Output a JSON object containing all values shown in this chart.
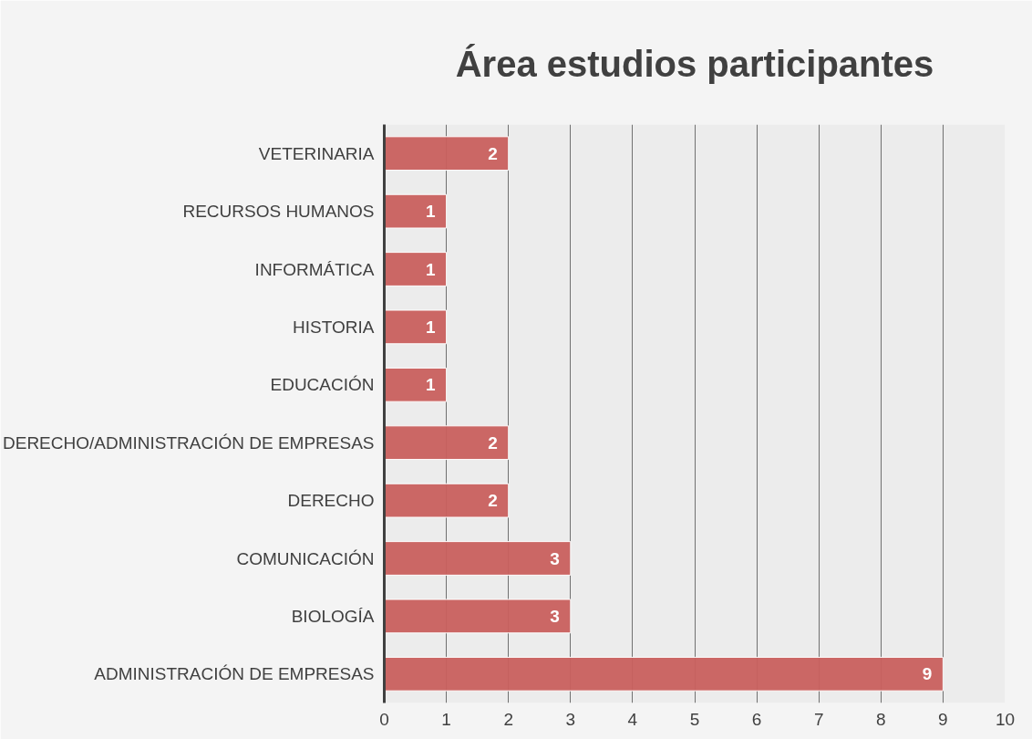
{
  "chart_data": {
    "type": "bar",
    "orientation": "horizontal",
    "title": "Área estudios participantes",
    "categories": [
      "VETERINARIA",
      "RECURSOS HUMANOS",
      "INFORMÁTICA",
      "HISTORIA",
      "EDUCACIÓN",
      "DERECHO/ADMINISTRACIÓN DE EMPRESAS",
      "DERECHO",
      "COMUNICACIÓN",
      "BIOLOGÍA",
      "ADMINISTRACIÓN DE EMPRESAS"
    ],
    "values": [
      2,
      1,
      1,
      1,
      1,
      2,
      2,
      3,
      3,
      9
    ],
    "color": "#c9605e",
    "xlim": [
      0,
      10
    ],
    "xticks": [
      0,
      1,
      2,
      3,
      4,
      5,
      6,
      7,
      8,
      9,
      10
    ],
    "grid": "x",
    "data_labels": true
  }
}
